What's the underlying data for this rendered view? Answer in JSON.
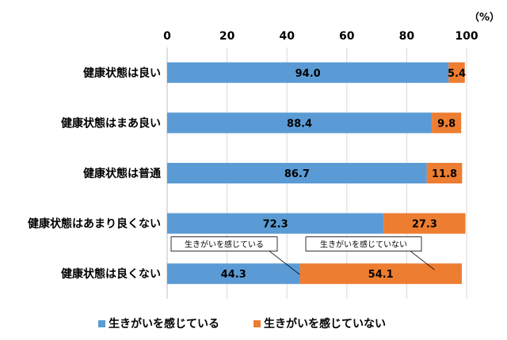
{
  "chart_data": {
    "type": "bar",
    "orientation": "horizontal",
    "stacked": true,
    "unit_label": "（%）",
    "xlim": [
      0,
      100
    ],
    "x_ticks": [
      0,
      20,
      40,
      60,
      80,
      100
    ],
    "categories": [
      "健康状態は良い",
      "健康状態はまあ良い",
      "健康状態は普通",
      "健康状態はあまり良くない",
      "健康状態は良くない"
    ],
    "series": [
      {
        "name": "生きがいを感じている",
        "values": [
          94.0,
          88.4,
          86.7,
          72.3,
          44.3
        ],
        "color": "#5B9BD5"
      },
      {
        "name": "生きがいを感じていない",
        "values": [
          5.4,
          9.8,
          11.8,
          27.3,
          54.1
        ],
        "color": "#ED7D31"
      }
    ],
    "data_labels": [
      [
        "94.0",
        "88.4",
        "86.7",
        "72.3",
        "44.3"
      ],
      [
        "5.4",
        "9.8",
        "11.8",
        "27.3",
        "54.1"
      ]
    ],
    "legend_position": "bottom",
    "grid": "vertical",
    "callouts": [
      {
        "text": "生きがいを感じている",
        "series": 0
      },
      {
        "text": "生きがいを感じていない",
        "series": 1
      }
    ]
  }
}
